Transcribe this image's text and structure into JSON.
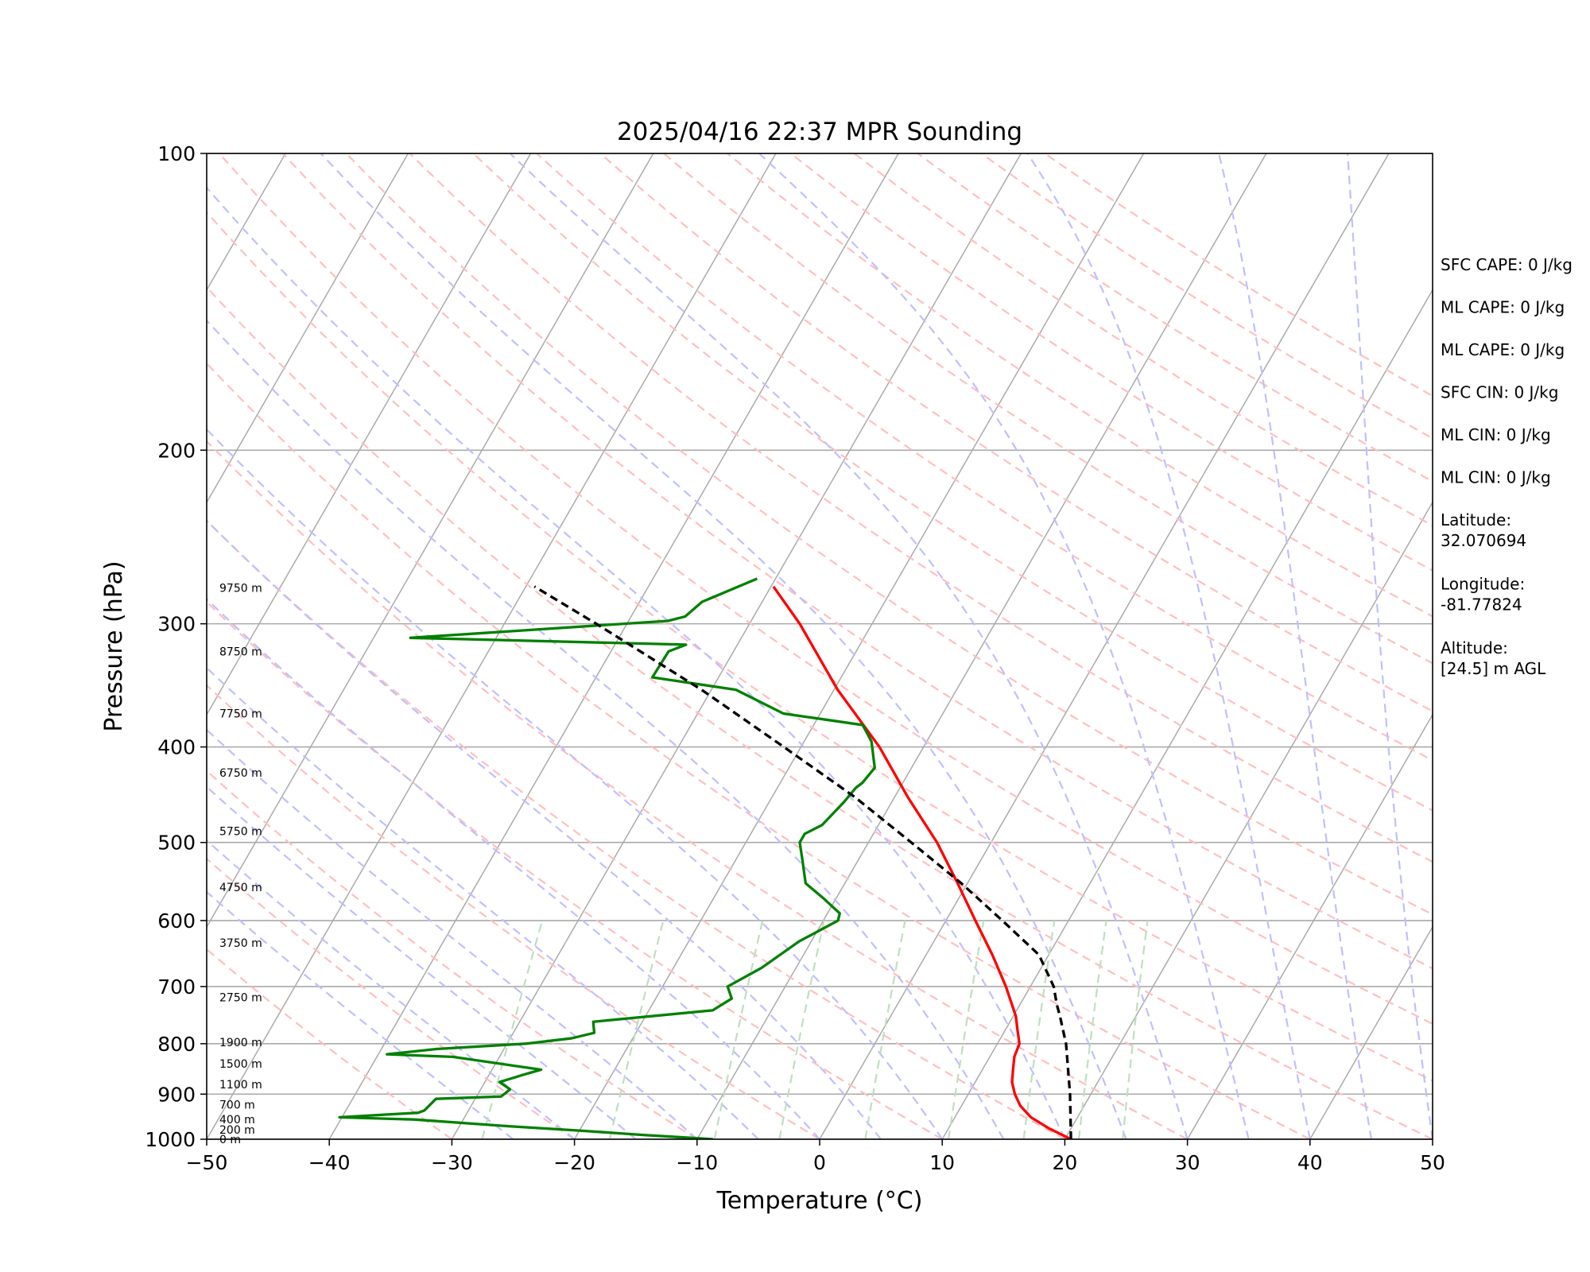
{
  "chart_data": {
    "type": "line",
    "subtype": "skew-t log-p",
    "title": "2025/04/16 22:37 MPR Sounding",
    "xlabel": "Temperature (°C)",
    "ylabel": "Pressure (hPa)",
    "xlim": [
      -50,
      50
    ],
    "ylim": [
      1000,
      100
    ],
    "y_scale": "log",
    "grid": true,
    "x_ticks": [
      "−50",
      "−40",
      "−30",
      "−20",
      "−10",
      "0",
      "10",
      "20",
      "30",
      "40",
      "50"
    ],
    "y_ticks": [
      "100",
      "200",
      "300",
      "400",
      "500",
      "600",
      "700",
      "800",
      "900",
      "1000"
    ],
    "series": [
      {
        "color": "#ff0000",
        "pressure": [
          1000,
          975,
          950,
          925,
          900,
          875,
          850,
          825,
          800,
          775,
          750,
          700,
          650,
          600,
          550,
          500,
          450,
          400,
          350,
          300,
          275
        ],
        "temperature": [
          20.5,
          18.2,
          16.2,
          14.8,
          13.8,
          13.0,
          12.5,
          12.0,
          11.8,
          11.0,
          10.2,
          8.0,
          5.4,
          2.4,
          -0.8,
          -4.4,
          -8.9,
          -13.6,
          -19.7,
          -25.9,
          -29.8
        ]
      },
      {
        "color": "#008000",
        "pressure": [
          1000,
          995,
          990,
          980,
          970,
          955,
          950,
          940,
          935,
          910,
          905,
          890,
          875,
          860,
          850,
          825,
          820,
          810,
          800,
          790,
          780,
          760,
          740,
          720,
          700,
          670,
          630,
          600,
          590,
          570,
          550,
          520,
          500,
          490,
          480,
          455,
          440,
          435,
          420,
          395,
          380,
          370,
          350,
          340,
          320,
          315,
          310,
          298,
          295,
          285,
          270
        ],
        "dewpoint": [
          -8.7,
          -11.6,
          -14.6,
          -20.0,
          -26.0,
          -34.0,
          -40.2,
          -34.0,
          -33.6,
          -33.2,
          -28.0,
          -27.6,
          -28.8,
          -27.2,
          -26.0,
          -33.8,
          -39.3,
          -35.5,
          -28.5,
          -25.0,
          -23.4,
          -24.0,
          -14.8,
          -13.8,
          -14.7,
          -12.8,
          -11.0,
          -8.8,
          -9.0,
          -11.0,
          -13.2,
          -14.6,
          -15.6,
          -15.6,
          -14.6,
          -13.9,
          -13.6,
          -13.3,
          -13.0,
          -14.5,
          -16.0,
          -23.0,
          -28.0,
          -35.4,
          -35.3,
          -34.2,
          -57.0,
          -36.8,
          -35.6,
          -34.9,
          -31.5
        ]
      },
      {
        "color": "#000000",
        "style": "dashed",
        "pressure": [
          1000,
          900,
          800,
          750,
          730,
          700,
          650,
          600,
          550,
          500,
          450,
          400,
          350,
          300,
          275
        ],
        "temperature": [
          20.5,
          18.3,
          15.6,
          13.8,
          13.0,
          11.9,
          9.2,
          4.6,
          -0.5,
          -6.5,
          -13.2,
          -21.4,
          -30.8,
          -42.5,
          -49.3
        ]
      }
    ],
    "height_labels": [
      {
        "text": "0 m",
        "pressure": 1000
      },
      {
        "text": "200 m",
        "pressure": 978
      },
      {
        "text": "400 m",
        "pressure": 955
      },
      {
        "text": "700 m",
        "pressure": 922
      },
      {
        "text": "1100 m",
        "pressure": 880
      },
      {
        "text": "1500 m",
        "pressure": 838
      },
      {
        "text": "1900 m",
        "pressure": 797
      },
      {
        "text": "2750 m",
        "pressure": 718
      },
      {
        "text": "3750 m",
        "pressure": 632
      },
      {
        "text": "4750 m",
        "pressure": 555
      },
      {
        "text": "5750 m",
        "pressure": 487
      },
      {
        "text": "6750 m",
        "pressure": 425
      },
      {
        "text": "7750 m",
        "pressure": 370
      },
      {
        "text": "8750 m",
        "pressure": 320
      },
      {
        "text": "9750 m",
        "pressure": 276
      }
    ],
    "reference_lines": {
      "isotherms_color": "#aaaaaa",
      "dry_adiabats_color": "#ffbfbf",
      "moist_adiabats_color": "#bfbfff",
      "mixing_ratio_color": "#bfdfbf"
    }
  },
  "info_panel": [
    "SFC CAPE: 0 J/kg",
    "ML CAPE: 0 J/kg",
    "ML CAPE: 0 J/kg",
    "SFC CIN: 0 J/kg",
    "ML CIN: 0 J/kg",
    "ML CIN: 0 J/kg",
    "Latitude:\n32.070694",
    "Longitude:\n-81.77824",
    "Altitude:\n[24.5] m AGL"
  ]
}
